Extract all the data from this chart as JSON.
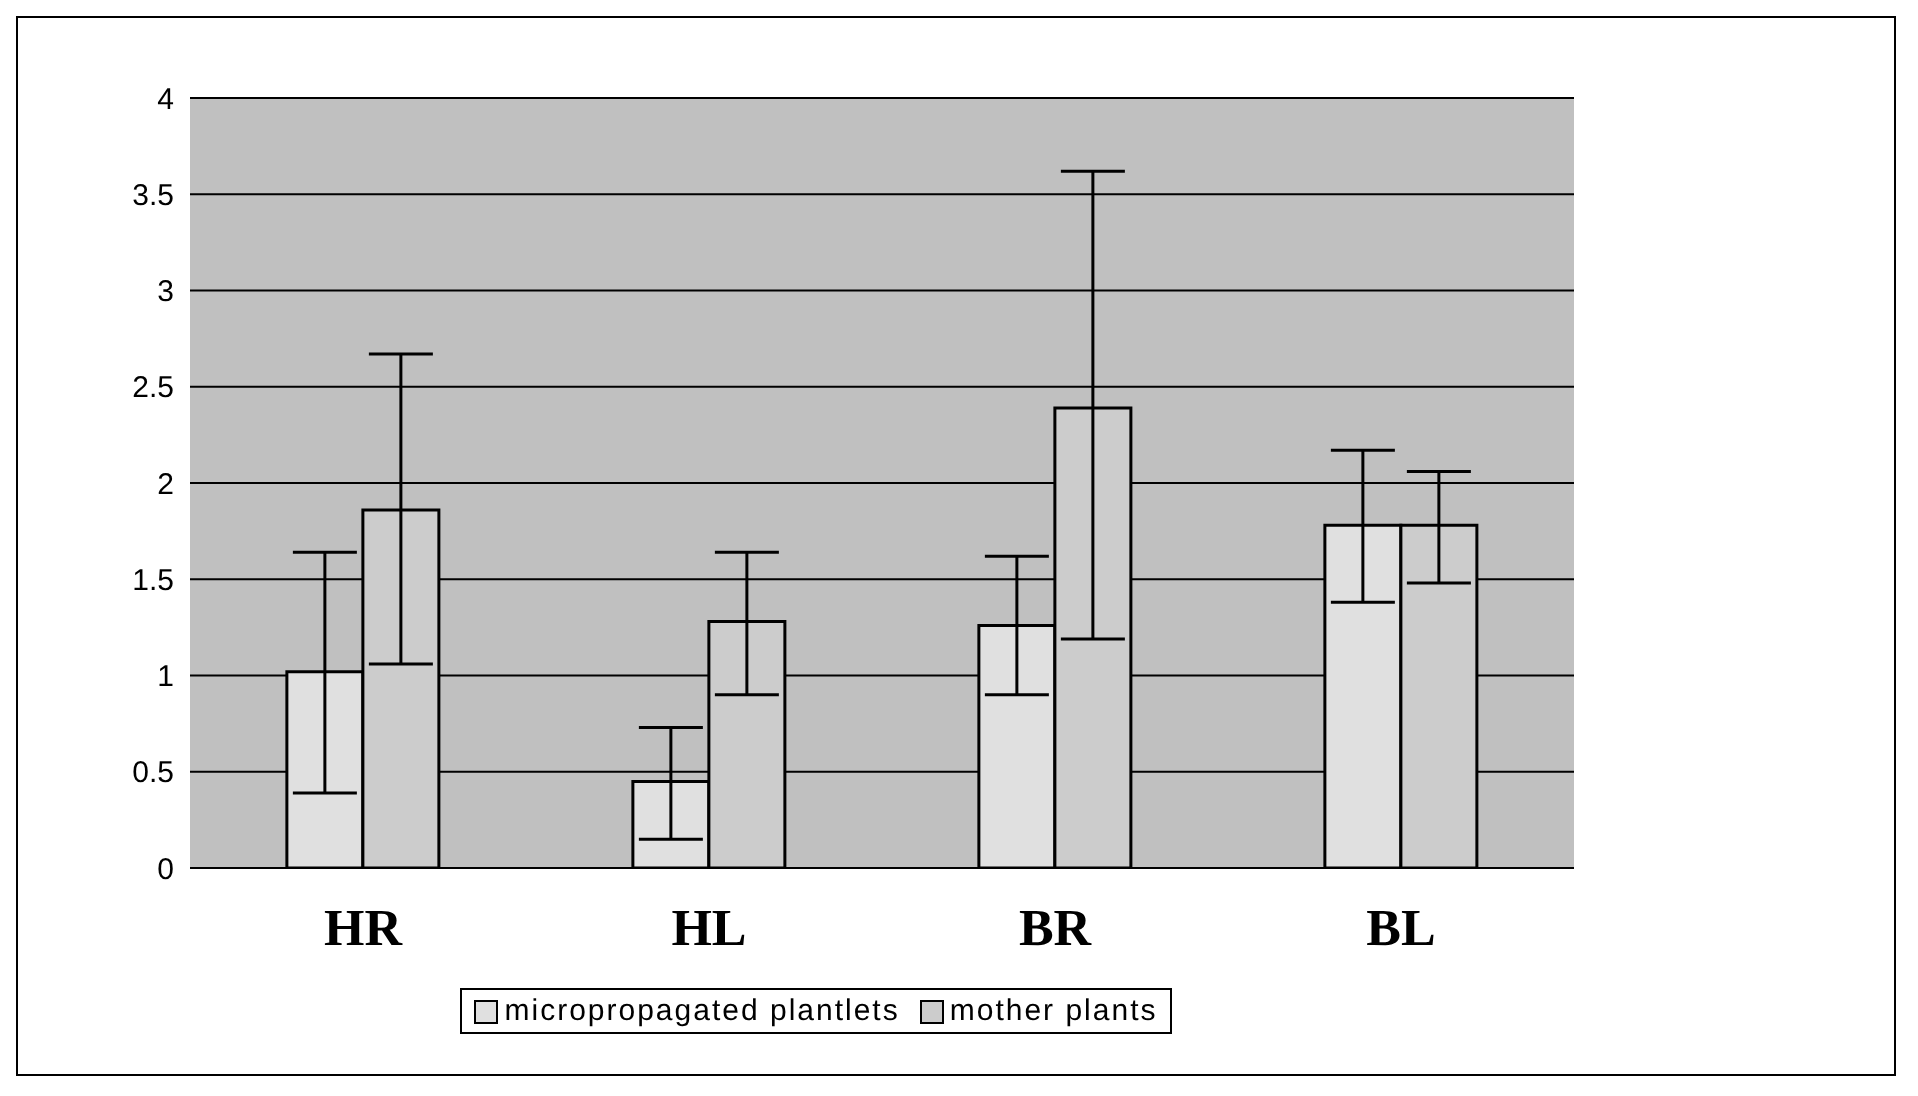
{
  "chart_data": {
    "type": "bar",
    "categories": [
      "HR",
      "HL",
      "BR",
      "BL"
    ],
    "series": [
      {
        "name": "micropropagated plantlets",
        "color": "#e0e0e0",
        "values": [
          1.02,
          0.45,
          1.26,
          1.78
        ],
        "errors": [
          [
            0.39,
            1.64
          ],
          [
            0.15,
            0.73
          ],
          [
            0.9,
            1.62
          ],
          [
            1.38,
            2.17
          ]
        ]
      },
      {
        "name": "mother plants",
        "color": "#cccccc",
        "values": [
          1.86,
          1.28,
          2.39,
          1.78
        ],
        "errors": [
          [
            1.06,
            2.67
          ],
          [
            0.9,
            1.64
          ],
          [
            1.19,
            3.62
          ],
          [
            1.48,
            2.06
          ]
        ]
      }
    ],
    "ylim": [
      0,
      4
    ],
    "yticks": [
      0,
      0.5,
      1,
      1.5,
      2,
      2.5,
      3,
      3.5,
      4
    ],
    "grid": "y",
    "legend": "bottom"
  }
}
